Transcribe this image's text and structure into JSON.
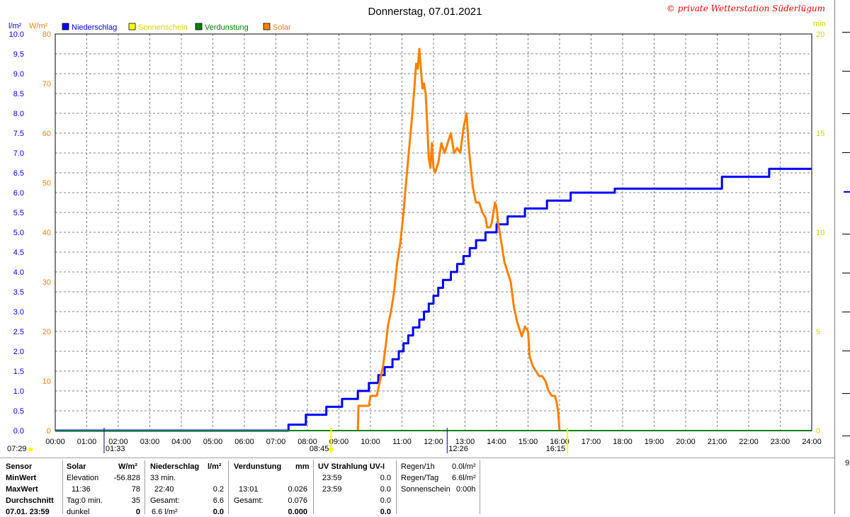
{
  "title": "Donnerstag, 07.01.2021",
  "copyright": "© private Wetterstation Süderlügum",
  "left_unit_1": "l/m²",
  "left_unit_2": "W/m²",
  "right_unit": "min",
  "right_edge_label": "9",
  "colors": {
    "niederschlag": "#0000ff",
    "sonnenschein": "#ffff00",
    "verdunstung": "#008000",
    "solar": "#ff8000",
    "grid": "#808080"
  },
  "legend": [
    {
      "name": "Niederschlag",
      "color": "#0000ff"
    },
    {
      "name": "Sonnenschein",
      "color": "#ffff00"
    },
    {
      "name": "Verdunstung",
      "color": "#008000"
    },
    {
      "name": "Solar",
      "color": "#ff8000"
    }
  ],
  "markers": {
    "sunrise": "07:29",
    "sun_start": "08:45",
    "noon": "12:26",
    "sunset": "16:15",
    "min_label": "01:33"
  },
  "chart_data": {
    "type": "line",
    "title": "Donnerstag, 07.01.2021",
    "x_ticks": [
      "00:00",
      "01:00",
      "02:00",
      "03:00",
      "04:00",
      "05:00",
      "06:00",
      "07:00",
      "08:00",
      "09:00",
      "10:00",
      "11:00",
      "12:00",
      "13:00",
      "14:00",
      "15:00",
      "16:00",
      "17:00",
      "18:00",
      "19:00",
      "20:00",
      "21:00",
      "22:00",
      "23:00",
      "24:00"
    ],
    "x_range_hours": [
      0,
      24
    ],
    "y_left_precip": {
      "unit": "l/m²",
      "range": [
        0,
        10
      ],
      "ticks": [
        "0.0",
        "0.5",
        "1.0",
        "1.5",
        "2.0",
        "2.5",
        "3.0",
        "3.5",
        "4.0",
        "4.5",
        "5.0",
        "5.5",
        "6.0",
        "6.5",
        "7.0",
        "7.5",
        "8.0",
        "8.5",
        "9.0",
        "9.5",
        "10.0"
      ]
    },
    "y_left_solar": {
      "unit": "W/m²",
      "range": [
        0,
        80
      ],
      "ticks": [
        "0",
        "10",
        "20",
        "30",
        "40",
        "50",
        "60",
        "70",
        "80"
      ]
    },
    "y_right_sun": {
      "unit": "min",
      "range": [
        0,
        20
      ],
      "ticks": [
        "0",
        "5",
        "10",
        "15",
        "20"
      ]
    },
    "grid": true,
    "legend_position": "top-left",
    "series": [
      {
        "name": "Niederschlag",
        "axis": "precip",
        "step": true,
        "points": [
          [
            0,
            0
          ],
          [
            7.4,
            0
          ],
          [
            7.4,
            0.15
          ],
          [
            7.95,
            0.15
          ],
          [
            7.95,
            0.4
          ],
          [
            8.6,
            0.4
          ],
          [
            8.6,
            0.6
          ],
          [
            9.1,
            0.6
          ],
          [
            9.1,
            0.8
          ],
          [
            9.6,
            0.8
          ],
          [
            9.6,
            1.0
          ],
          [
            9.95,
            1.0
          ],
          [
            9.95,
            1.2
          ],
          [
            10.25,
            1.2
          ],
          [
            10.25,
            1.4
          ],
          [
            10.45,
            1.4
          ],
          [
            10.45,
            1.6
          ],
          [
            10.7,
            1.6
          ],
          [
            10.7,
            1.8
          ],
          [
            10.9,
            1.8
          ],
          [
            10.9,
            2.0
          ],
          [
            11.05,
            2.0
          ],
          [
            11.05,
            2.2
          ],
          [
            11.2,
            2.2
          ],
          [
            11.2,
            2.4
          ],
          [
            11.35,
            2.4
          ],
          [
            11.35,
            2.6
          ],
          [
            11.55,
            2.6
          ],
          [
            11.55,
            2.8
          ],
          [
            11.7,
            2.8
          ],
          [
            11.7,
            3.0
          ],
          [
            11.85,
            3.0
          ],
          [
            11.85,
            3.2
          ],
          [
            12.0,
            3.2
          ],
          [
            12.0,
            3.4
          ],
          [
            12.15,
            3.4
          ],
          [
            12.15,
            3.6
          ],
          [
            12.3,
            3.6
          ],
          [
            12.3,
            3.8
          ],
          [
            12.55,
            3.8
          ],
          [
            12.55,
            4.0
          ],
          [
            12.75,
            4.0
          ],
          [
            12.75,
            4.2
          ],
          [
            12.95,
            4.2
          ],
          [
            12.95,
            4.4
          ],
          [
            13.15,
            4.4
          ],
          [
            13.15,
            4.6
          ],
          [
            13.35,
            4.6
          ],
          [
            13.35,
            4.8
          ],
          [
            13.65,
            4.8
          ],
          [
            13.65,
            5.0
          ],
          [
            14.0,
            5.0
          ],
          [
            14.0,
            5.2
          ],
          [
            14.35,
            5.2
          ],
          [
            14.35,
            5.4
          ],
          [
            14.9,
            5.4
          ],
          [
            14.9,
            5.6
          ],
          [
            15.6,
            5.6
          ],
          [
            15.6,
            5.8
          ],
          [
            16.35,
            5.8
          ],
          [
            16.35,
            6.0
          ],
          [
            17.75,
            6.0
          ],
          [
            17.75,
            6.1
          ],
          [
            21.15,
            6.1
          ],
          [
            21.15,
            6.4
          ],
          [
            22.65,
            6.4
          ],
          [
            22.65,
            6.6
          ],
          [
            24.0,
            6.6
          ]
        ]
      },
      {
        "name": "Solar",
        "axis": "solar",
        "step": false,
        "points": [
          [
            9.6,
            0
          ],
          [
            9.62,
            5
          ],
          [
            9.95,
            5
          ],
          [
            10.0,
            7
          ],
          [
            10.2,
            7
          ],
          [
            10.3,
            10
          ],
          [
            10.4,
            13
          ],
          [
            10.5,
            18
          ],
          [
            10.55,
            21
          ],
          [
            10.65,
            24
          ],
          [
            10.75,
            28
          ],
          [
            10.85,
            34
          ],
          [
            10.95,
            38
          ],
          [
            11.05,
            44
          ],
          [
            11.1,
            48
          ],
          [
            11.2,
            55
          ],
          [
            11.3,
            62
          ],
          [
            11.38,
            68
          ],
          [
            11.45,
            74
          ],
          [
            11.5,
            73
          ],
          [
            11.55,
            77
          ],
          [
            11.6,
            73
          ],
          [
            11.65,
            69
          ],
          [
            11.7,
            70
          ],
          [
            11.75,
            68
          ],
          [
            11.8,
            62
          ],
          [
            11.85,
            55
          ],
          [
            11.9,
            53
          ],
          [
            11.95,
            58
          ],
          [
            12.0,
            53
          ],
          [
            12.05,
            52
          ],
          [
            12.15,
            54
          ],
          [
            12.25,
            58
          ],
          [
            12.35,
            56
          ],
          [
            12.45,
            58
          ],
          [
            12.55,
            60
          ],
          [
            12.6,
            58
          ],
          [
            12.65,
            56
          ],
          [
            12.75,
            57
          ],
          [
            12.85,
            56
          ],
          [
            12.95,
            61
          ],
          [
            13.05,
            64
          ],
          [
            13.1,
            59
          ],
          [
            13.15,
            55
          ],
          [
            13.25,
            49
          ],
          [
            13.35,
            46
          ],
          [
            13.45,
            46
          ],
          [
            13.55,
            44
          ],
          [
            13.65,
            43
          ],
          [
            13.7,
            41
          ],
          [
            13.8,
            41
          ],
          [
            13.85,
            42
          ],
          [
            13.9,
            44
          ],
          [
            13.95,
            46
          ],
          [
            14.0,
            45
          ],
          [
            14.05,
            42
          ],
          [
            14.1,
            40
          ],
          [
            14.15,
            38
          ],
          [
            14.25,
            34
          ],
          [
            14.35,
            32
          ],
          [
            14.45,
            30
          ],
          [
            14.55,
            25
          ],
          [
            14.65,
            22
          ],
          [
            14.75,
            20
          ],
          [
            14.8,
            19
          ],
          [
            14.9,
            21
          ],
          [
            15.0,
            20
          ],
          [
            15.05,
            15
          ],
          [
            15.15,
            13
          ],
          [
            15.25,
            12
          ],
          [
            15.35,
            11
          ],
          [
            15.45,
            11
          ],
          [
            15.55,
            10
          ],
          [
            15.65,
            8
          ],
          [
            15.75,
            7
          ],
          [
            15.85,
            7
          ],
          [
            15.9,
            6
          ],
          [
            15.95,
            4
          ],
          [
            16.0,
            0
          ]
        ]
      },
      {
        "name": "Verdunstung",
        "axis": "precip",
        "step": false,
        "points": [
          [
            0,
            0
          ],
          [
            24,
            0
          ]
        ]
      }
    ]
  },
  "stats": {
    "sensor": {
      "label": "Sensor",
      "min": "MinWert",
      "max": "MaxWert",
      "avg": "Durchschnitt",
      "date": "07.01. 23:59"
    },
    "solar": {
      "header": "Solar",
      "unit": "W/m²",
      "min_label": "Elevation",
      "min_value": "-56.828",
      "max_label": "11:36",
      "max_value": "78",
      "avg_label": "Tag:0 min.",
      "avg_value": "35",
      "now_label": "dunkel",
      "now_value": "0"
    },
    "niederschlag": {
      "header": "Niederschlag",
      "unit": "l/m²",
      "min_label": "33 min.",
      "min_value": "",
      "max_label": "22:40",
      "max_value": "0.2",
      "avg_label": "Gesamt:",
      "avg_value": "6.6",
      "now_label": "6.6 l/m²",
      "now_value": "0.0"
    },
    "verdunstung": {
      "header": "Verdunstung",
      "unit": "mm",
      "min_label": "",
      "min_value": "",
      "max_label": "13:01",
      "max_value": "0.026",
      "avg_label": "Gesamt:",
      "avg_value": "0.076",
      "now_label": "",
      "now_value": "0.000"
    },
    "uv": {
      "header": "UV Strahlung UV-I",
      "min_label": "23:59",
      "min_value": "0.0",
      "max_label": "23:59",
      "max_value": "0.0",
      "avg_label": "",
      "avg_value": "0.0",
      "now_label": "",
      "now_value": "0.0"
    },
    "regen": {
      "r1_label": "Regen/1h",
      "r1_value": "0.0l/m²",
      "r2_label": "Regen/Tag",
      "r2_value": "6.6l/m²",
      "r3_label": "Sonnenschein",
      "r3_value": "0:00h"
    }
  }
}
